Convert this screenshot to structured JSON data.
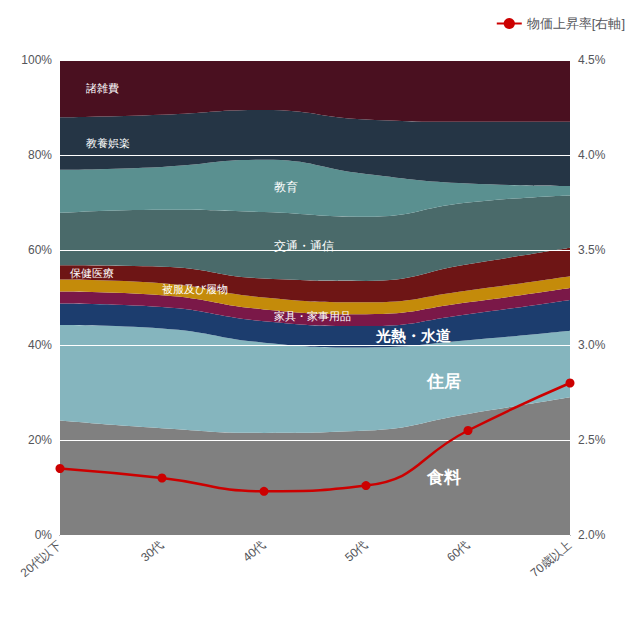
{
  "chart_data": {
    "type": "area",
    "stacked": true,
    "categories": [
      "20代以下",
      "30代",
      "40代",
      "50代",
      "60代",
      "70歳以上"
    ],
    "series": [
      {
        "name": "食料",
        "color": "#808080",
        "values": [
          24.120603,
          22.5,
          21.5,
          22.0,
          25.5,
          29.0
        ]
      },
      {
        "name": "住居",
        "color": "#85b5be",
        "values": [
          20.100503,
          21.0,
          19.0,
          17.5,
          15.5,
          14.0
        ]
      },
      {
        "name": "光熱・水道",
        "color": "#1c3d6e",
        "values": [
          4.522613,
          4.5,
          4.5,
          4.5,
          5.5,
          6.5
        ]
      },
      {
        "name": "家具・家事用品",
        "color": "#7a1848",
        "values": [
          2.512563,
          2.5,
          2.5,
          2.5,
          2.5,
          2.5
        ]
      },
      {
        "name": "被服及び履物",
        "color": "#c48b0a",
        "values": [
          2.512563,
          2.5,
          2.5,
          2.5,
          2.5,
          2.5
        ]
      },
      {
        "name": "保健医療",
        "color": "#6e1515",
        "values": [
          3.015075,
          3.5,
          4.0,
          4.5,
          5.5,
          6.0
        ]
      },
      {
        "name": "交通・通信",
        "color": "#4a6a6a",
        "values": [
          11.055276,
          12.0,
          14.0,
          13.5,
          13.0,
          11.0
        ]
      },
      {
        "name": "教育",
        "color": "#5a9090",
        "values": [
          9.045226,
          9.0,
          11.0,
          9.0,
          4.0,
          2.0
        ]
      },
      {
        "name": "教養娯楽",
        "color": "#253545",
        "values": [
          11.055276,
          11.0,
          10.5,
          11.5,
          13.0,
          13.5
        ]
      },
      {
        "name": "諸雑費",
        "color": "#4a1020",
        "values": [
          12.060302,
          11.5,
          10.5,
          12.5,
          13.0,
          13.0
        ]
      },
      {
        "name": "物価上昇率[右軸]",
        "type": "line",
        "axis": "y2",
        "color": "#cc0000",
        "marker": "circle",
        "values": [
          2.35,
          2.3,
          2.23,
          2.26,
          2.55,
          2.8
        ]
      }
    ],
    "ylim": [
      0,
      100
    ],
    "yticks": [
      {
        "value": 0,
        "label": "0%"
      },
      {
        "value": 20,
        "label": "20%"
      },
      {
        "value": 40,
        "label": "40%"
      },
      {
        "value": 60,
        "label": "60%"
      },
      {
        "value": 80,
        "label": "80%"
      },
      {
        "value": 100,
        "label": "100%"
      }
    ],
    "y2lim": [
      2.0,
      4.5
    ],
    "y2ticks": [
      {
        "value": 2.0,
        "label": "2.0%"
      },
      {
        "value": 2.5,
        "label": "2.5%"
      },
      {
        "value": 3.0,
        "label": "3.0%"
      },
      {
        "value": 3.5,
        "label": "3.5%"
      },
      {
        "value": 4.0,
        "label": "4.0%"
      },
      {
        "value": 4.5,
        "label": "4.5%"
      }
    ],
    "grid": true,
    "legend": "upper right"
  }
}
